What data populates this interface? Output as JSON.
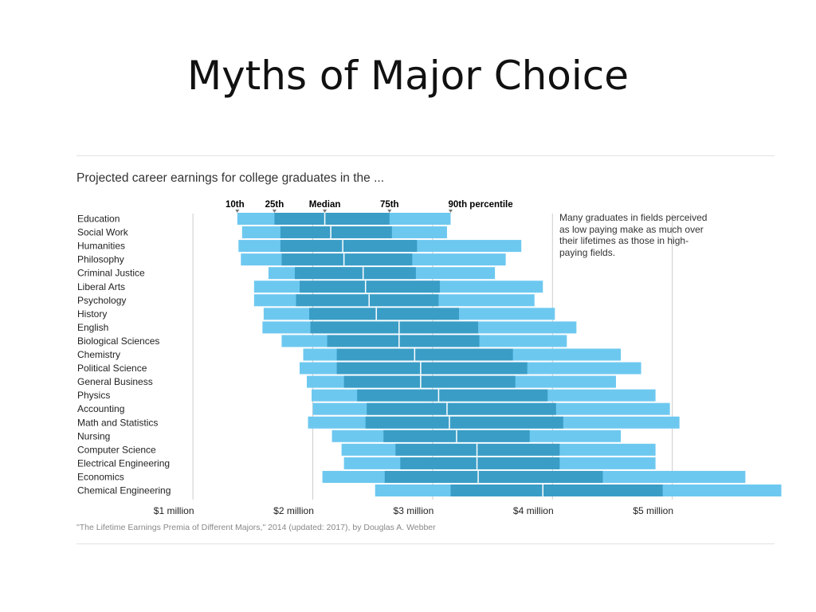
{
  "slide": {
    "title": "Myths of Major Choice"
  },
  "chart_data": {
    "type": "bar",
    "subtype": "range-percentile",
    "title": "Projected career earnings for college graduates in the ...",
    "source": "\"The Lifetime Earnings Premia of Different Majors,\" 2014 (updated: 2017), by Douglas A. Webber",
    "annotation": "Many graduates in fields perceived as low paying make as much over their lifetimes as those in high-paying fields.",
    "units": "million",
    "xlim": [
      0.6,
      5.9
    ],
    "x_ticks": [
      1,
      2,
      3,
      4,
      5
    ],
    "x_tick_labels": [
      "$1 million",
      "$2 million",
      "$3 million",
      "$4 million",
      "$5 million"
    ],
    "percentile_labels": [
      "10th",
      "25th",
      "Median",
      "75th",
      "90th percentile"
    ],
    "colors": {
      "outer": "#6dc8f0",
      "inner": "#3a9dc6",
      "divider": "#ffffff",
      "gridline": "#cccccc"
    },
    "categories": [
      "Education",
      "Social Work",
      "Humanities",
      "Philosophy",
      "Criminal Justice",
      "Liberal Arts",
      "Psychology",
      "History",
      "English",
      "Biological Sciences",
      "Chemistry",
      "Political Science",
      "General Business",
      "Physics",
      "Accounting",
      "Math and Statistics",
      "Nursing",
      "Computer Science",
      "Electrical Engineering",
      "Economics",
      "Chemical Engineering"
    ],
    "series": [
      {
        "name": "10th",
        "values": [
          1.37,
          1.41,
          1.38,
          1.4,
          1.63,
          1.51,
          1.51,
          1.59,
          1.58,
          1.74,
          1.92,
          1.89,
          1.95,
          1.99,
          2.0,
          1.96,
          2.16,
          2.24,
          2.26,
          2.08,
          2.52
        ]
      },
      {
        "name": "25th",
        "values": [
          1.68,
          1.73,
          1.73,
          1.74,
          1.85,
          1.89,
          1.86,
          1.97,
          1.98,
          2.12,
          2.2,
          2.2,
          2.26,
          2.37,
          2.45,
          2.44,
          2.59,
          2.69,
          2.73,
          2.6,
          3.15
        ]
      },
      {
        "name": "Median",
        "values": [
          2.1,
          2.15,
          2.25,
          2.26,
          2.42,
          2.44,
          2.47,
          2.53,
          2.72,
          2.72,
          2.85,
          2.9,
          2.9,
          3.05,
          3.12,
          3.14,
          3.2,
          3.37,
          3.37,
          3.38,
          3.92
        ]
      },
      {
        "name": "75th",
        "values": [
          2.64,
          2.66,
          2.87,
          2.83,
          2.86,
          3.06,
          3.05,
          3.22,
          3.38,
          3.39,
          3.67,
          3.79,
          3.69,
          3.96,
          4.03,
          4.09,
          3.81,
          4.06,
          4.06,
          4.42,
          4.92
        ]
      },
      {
        "name": "90th percentile",
        "values": [
          3.15,
          3.12,
          3.74,
          3.61,
          3.52,
          3.92,
          3.85,
          4.02,
          4.2,
          4.12,
          4.57,
          4.74,
          4.53,
          4.86,
          4.98,
          5.06,
          4.57,
          4.86,
          4.86,
          5.61,
          5.91
        ]
      }
    ]
  }
}
